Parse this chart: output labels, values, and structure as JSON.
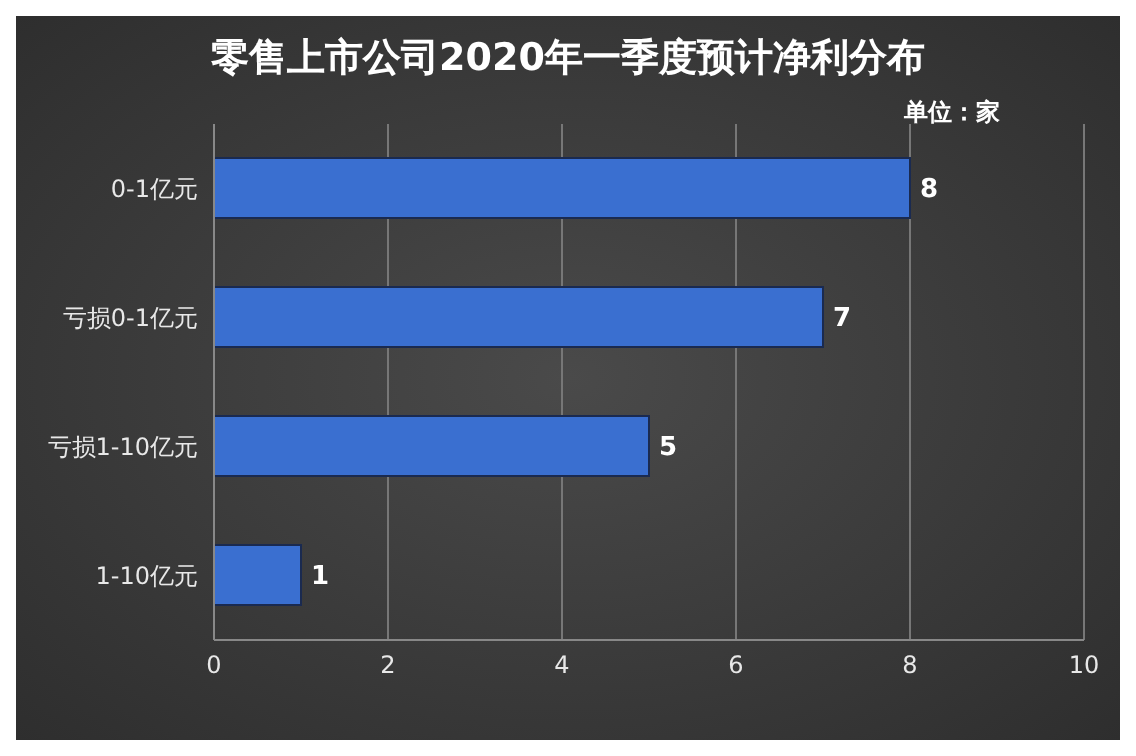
{
  "chart_data": {
    "type": "bar",
    "orientation": "horizontal",
    "title": "零售上市公司2020年一季度预计净利分布",
    "subtitle": "单位：家",
    "categories": [
      "0-1亿元",
      "亏损0-1亿元",
      "亏损1-10亿元",
      "1-10亿元"
    ],
    "values": [
      8,
      7,
      5,
      1
    ],
    "color": "#3a6fd0",
    "xlim": [
      0,
      10
    ],
    "xticks": [
      0,
      2,
      4,
      6,
      8,
      10
    ],
    "grid": "x",
    "data_labels": true
  }
}
